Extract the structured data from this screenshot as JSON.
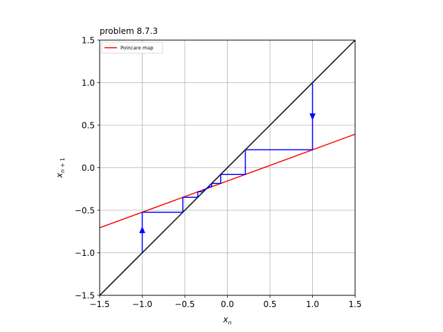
{
  "chart_data": {
    "type": "line",
    "title": "problem 8.7.3",
    "xlabel": "x_n",
    "ylabel": "x_{n+1}",
    "xlim": [
      -1.5,
      1.5
    ],
    "ylim": [
      -1.5,
      1.5
    ],
    "xticks": [
      "−1.5",
      "−1.0",
      "−0.5",
      "0.0",
      "0.5",
      "1.0",
      "1.5"
    ],
    "yticks": [
      "−1.5",
      "−1.0",
      "−0.5",
      "0.0",
      "0.5",
      "1.0",
      "1.5"
    ],
    "grid": true,
    "legend": {
      "placement": "upper-left",
      "entries": [
        "Poincare map"
      ]
    },
    "series": [
      {
        "name": "Poincare map",
        "color": "#ff0000",
        "x": [
          -1.5,
          1.5
        ],
        "y": [
          -0.706,
          0.394
        ]
      },
      {
        "color": "#000000",
        "x": [
          -1.5,
          1.5
        ],
        "y": [
          -1.5,
          1.5
        ]
      },
      {
        "color": "#0000ff",
        "x": [
          1.0,
          1.0,
          0.211,
          0.211,
          -0.079,
          -0.079,
          -0.185,
          -0.185,
          -0.224,
          -0.224,
          -0.239,
          -0.239,
          -0.244
        ],
        "y": [
          1.0,
          0.211,
          0.211,
          -0.079,
          -0.079,
          -0.185,
          -0.185,
          -0.224,
          -0.224,
          -0.239,
          -0.239,
          -0.244,
          -0.244
        ]
      },
      {
        "color": "#0000ff",
        "x": [
          -1.0,
          -1.0,
          -0.523,
          -0.523,
          -0.348,
          -0.348,
          -0.283,
          -0.283,
          -0.26,
          -0.26,
          -0.251
        ],
        "y": [
          -1.0,
          -0.523,
          -0.523,
          -0.348,
          -0.348,
          -0.283,
          -0.283,
          -0.26,
          -0.26,
          -0.251,
          -0.251
        ]
      }
    ],
    "arrows": [
      {
        "color": "#0000ff",
        "x": 1.0,
        "y": 0.6,
        "direction": "down"
      },
      {
        "color": "#0000ff",
        "x": -1.0,
        "y": -0.73,
        "direction": "up"
      }
    ]
  }
}
